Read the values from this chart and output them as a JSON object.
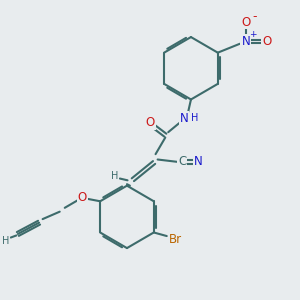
{
  "bg_color": "#e8ecee",
  "bond_color": "#3d6b6b",
  "bond_width": 1.5,
  "dbo": 0.06,
  "atom_colors": {
    "C": "#3d6b6b",
    "N": "#1a1acc",
    "O": "#cc1a1a",
    "Br": "#bb6600",
    "H": "#1a1acc"
  },
  "fs": 8.5,
  "fs2": 7.0
}
